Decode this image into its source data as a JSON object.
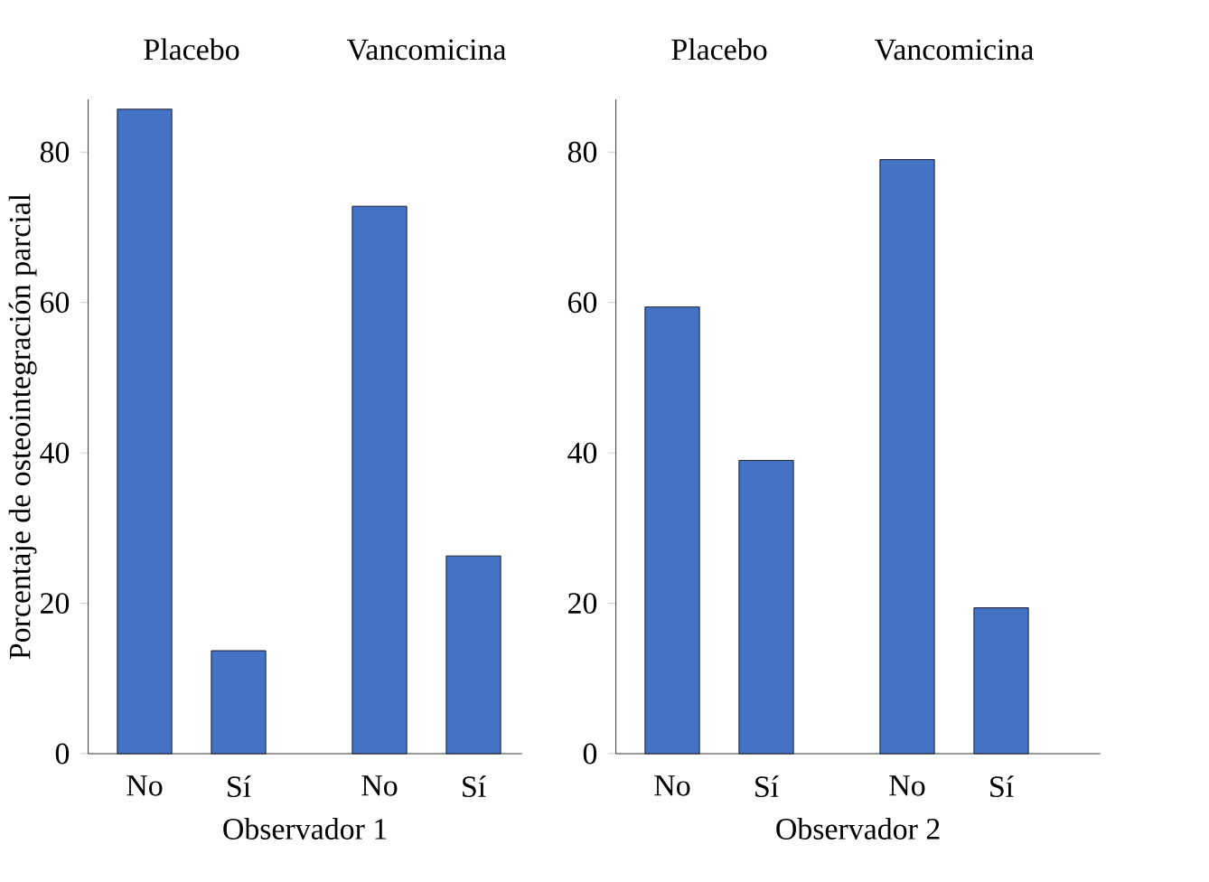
{
  "chart_data": [
    {
      "type": "bar",
      "categories": [
        "No",
        "Sí",
        "No",
        "Sí"
      ],
      "values": [
        85.7,
        13.7,
        72.8,
        26.3
      ],
      "color": "#4472c4",
      "ylim": [
        0,
        87
      ],
      "yticks": [
        0,
        20,
        40,
        60,
        80
      ],
      "xlabel": "Observador 1",
      "ylabel": "Porcentaje de osteointegración parcial",
      "annotations": [
        "Placebo",
        "Vancomicina"
      ]
    },
    {
      "type": "bar",
      "categories": [
        "No",
        "Sí",
        "No",
        "Sí"
      ],
      "values": [
        59.4,
        39.0,
        79.0,
        19.4
      ],
      "color": "#4472c4",
      "ylim": [
        0,
        87
      ],
      "yticks": [
        0,
        20,
        40,
        60,
        80
      ],
      "xlabel": "Observador 2",
      "annotations": [
        "Placebo",
        "Vancomicina"
      ]
    }
  ]
}
